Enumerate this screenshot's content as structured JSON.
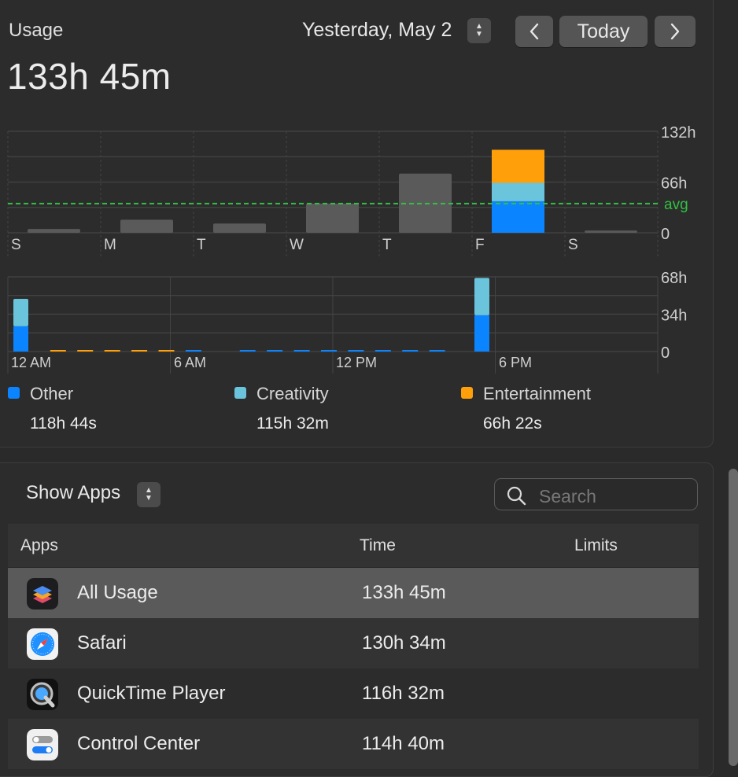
{
  "header": {
    "title": "Usage",
    "total": "133h 45m",
    "date": "Yesterday, May 2",
    "today_label": "Today"
  },
  "weekly_chart": {
    "type": "bar",
    "categories": [
      "S",
      "M",
      "T",
      "W",
      "T",
      "F",
      "S"
    ],
    "values": [
      5,
      17,
      12,
      38,
      77,
      108,
      3
    ],
    "highlight_index": 5,
    "highlight_stack": {
      "Other": 41,
      "Creativity": 24,
      "Entertainment": 43
    },
    "ylim": [
      0,
      132
    ],
    "yticks": [
      "132h",
      "66h",
      "0"
    ],
    "avg_label": "avg",
    "avg_value": 38
  },
  "hourly_chart": {
    "type": "bar",
    "ticks": [
      "12 AM",
      "6 AM",
      "12 PM",
      "6 PM"
    ],
    "ylim": [
      0,
      68
    ],
    "yticks": [
      "68h",
      "34h",
      "0"
    ],
    "bars": [
      {
        "hour": 0,
        "other": 23,
        "creativity": 25
      },
      {
        "hour": 17,
        "other": 33,
        "creativity": 34
      }
    ]
  },
  "legend": [
    {
      "name": "Other",
      "value": "118h 44s",
      "color": "#0a84ff"
    },
    {
      "name": "Creativity",
      "value": "115h 32m",
      "color": "#6ac4dc"
    },
    {
      "name": "Entertainment",
      "value": "66h 22s",
      "color": "#ff9f0a"
    }
  ],
  "apps_section": {
    "show_label": "Show Apps",
    "search_placeholder": "Search",
    "columns": {
      "apps": "Apps",
      "time": "Time",
      "limits": "Limits"
    },
    "rows": [
      {
        "name": "All Usage",
        "time": "133h 45m",
        "icon": "stack-icon"
      },
      {
        "name": "Safari",
        "time": "130h 34m",
        "icon": "safari-icon"
      },
      {
        "name": "QuickTime Player",
        "time": "116h 32m",
        "icon": "quicktime-icon"
      },
      {
        "name": "Control Center",
        "time": "114h 40m",
        "icon": "control-center-icon"
      }
    ]
  },
  "colors": {
    "other": "#0a84ff",
    "creativity": "#6ac4dc",
    "entertainment": "#ff9f0a",
    "avg": "#32c043",
    "bar": "#5a5a5a"
  }
}
